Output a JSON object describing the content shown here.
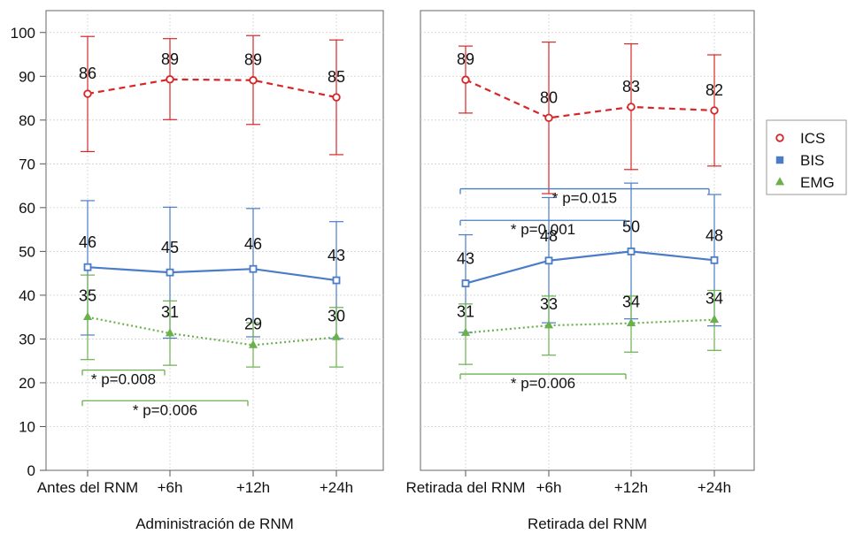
{
  "chart_data": {
    "type": "line",
    "ylim": [
      0,
      105
    ],
    "y_ticks": [
      0,
      10,
      20,
      30,
      40,
      50,
      60,
      70,
      80,
      90,
      100
    ],
    "grid": true,
    "legend_position": "right",
    "legend": [
      {
        "key": "ICS",
        "label": "ICS",
        "marker": "circle",
        "color": "#d62728"
      },
      {
        "key": "BIS",
        "label": "BIS",
        "marker": "square",
        "color": "#4a7cc7"
      },
      {
        "key": "EMG",
        "label": "EMG",
        "marker": "triangle",
        "color": "#6ab04c"
      }
    ],
    "panels": [
      {
        "xlabel": "Administración de RNM",
        "categories": [
          "Antes del RNM",
          "+6h",
          "+12h",
          "+24h"
        ],
        "series": [
          {
            "name": "ICS",
            "values": [
              86,
              89,
              89,
              85
            ],
            "display_values": [
              86.0,
              89.3,
              89.1,
              85.2
            ],
            "err_low": [
              72.8,
              80.1,
              79.0,
              72.1
            ],
            "err_high": [
              99.1,
              98.6,
              99.3,
              98.3
            ]
          },
          {
            "name": "BIS",
            "values": [
              46,
              45,
              46,
              43
            ],
            "display_values": [
              46.4,
              45.2,
              46.0,
              43.4
            ],
            "err_low": [
              30.9,
              30.2,
              30.5,
              30.1
            ],
            "err_high": [
              61.6,
              60.1,
              59.8,
              56.8
            ]
          },
          {
            "name": "EMG",
            "values": [
              35,
              31,
              29,
              30
            ],
            "display_values": [
              35.0,
              31.3,
              28.6,
              30.4
            ],
            "err_low": [
              25.3,
              24.0,
              23.6,
              23.6
            ],
            "err_high": [
              44.6,
              38.7,
              33.7,
              37.2
            ]
          }
        ],
        "annotations": [
          {
            "text": "* p=0.008",
            "series": "EMG",
            "from": 0,
            "to": 1,
            "y": 22.9
          },
          {
            "text": "* p=0.006",
            "series": "EMG",
            "from": 0,
            "to": 2,
            "y": 15.9
          }
        ]
      },
      {
        "xlabel": "Retirada del RNM",
        "categories": [
          "Retirada del RNM",
          "+6h",
          "+12h",
          "+24h"
        ],
        "series": [
          {
            "name": "ICS",
            "values": [
              89,
              80,
              83,
              82
            ],
            "display_values": [
              89.2,
              80.5,
              83.0,
              82.2
            ],
            "err_low": [
              81.6,
              63.2,
              68.7,
              69.5
            ],
            "err_high": [
              96.9,
              97.8,
              97.4,
              94.9
            ]
          },
          {
            "name": "BIS",
            "values": [
              43,
              48,
              50,
              48
            ],
            "display_values": [
              42.7,
              47.9,
              50.0,
              48.0
            ],
            "err_low": [
              31.5,
              33.7,
              34.6,
              33.0
            ],
            "err_high": [
              53.8,
              62.3,
              65.6,
              63.0
            ]
          },
          {
            "name": "EMG",
            "values": [
              31,
              33,
              34,
              34
            ],
            "display_values": [
              31.4,
              33.1,
              33.6,
              34.4
            ],
            "err_low": [
              24.2,
              26.3,
              27.0,
              27.4
            ],
            "err_high": [
              38.0,
              39.8,
              39.8,
              41.1
            ]
          }
        ],
        "annotations": [
          {
            "text": "* p=0.015",
            "series": "BIS",
            "from": 0,
            "to": 3,
            "y": 64.3
          },
          {
            "text": "* p=0.001",
            "series": "BIS",
            "from": 0,
            "to": 2,
            "y": 57.1
          },
          {
            "text": "* p=0.006",
            "series": "EMG",
            "from": 0,
            "to": 2,
            "y": 22.0
          }
        ]
      }
    ]
  }
}
